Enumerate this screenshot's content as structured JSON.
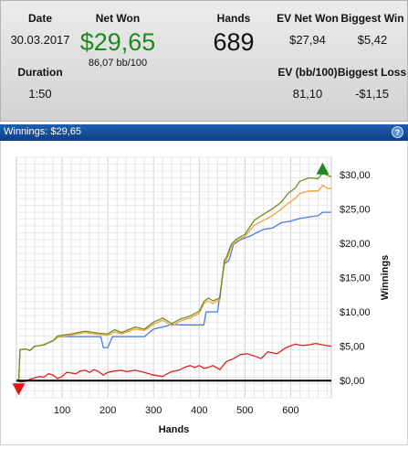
{
  "stats": {
    "date_label": "Date",
    "date_value": "30.03.2017",
    "duration_label": "Duration",
    "duration_value": "1:50",
    "net_won_label": "Net Won",
    "net_won_value": "$29,65",
    "net_won_sub": "86,07 bb/100",
    "hands_label": "Hands",
    "hands_value": "689",
    "ev_net_won_label": "EV Net Won",
    "ev_net_won_value": "$27,94",
    "ev_bb_label": "EV (bb/100)",
    "ev_bb_value": "81,10",
    "biggest_win_label": "Biggest Win",
    "biggest_win_value": "$5,42",
    "biggest_loss_label": "Biggest Loss",
    "biggest_loss_value": "-$1,15"
  },
  "titlebar": {
    "text": "Winnings: $29,65",
    "help": "?"
  },
  "colors": {
    "green": "#6e8f1e",
    "orange": "#f0a040",
    "blue": "#4a7ae8",
    "red": "#e02020",
    "net_won": "#1d8a1d"
  },
  "chart_data": {
    "type": "line",
    "xlabel": "Hands",
    "ylabel": "Winnings",
    "xlim": [
      0,
      689
    ],
    "ylim": [
      -2.5,
      32.5
    ],
    "xticks": [
      100,
      200,
      300,
      400,
      500,
      600
    ],
    "xtick_labels": [
      "100",
      "200",
      "300",
      "400",
      "500",
      "600"
    ],
    "yticks": [
      0,
      5,
      10,
      15,
      20,
      25,
      30
    ],
    "ytick_labels": [
      "$0,00",
      "$5,00",
      "$10,00",
      "$15,00",
      "$20,00",
      "$25,00",
      "$30,00"
    ],
    "grid": true,
    "series": [
      {
        "color": "green",
        "points": [
          [
            0,
            0
          ],
          [
            5,
            0
          ],
          [
            8,
            4.5
          ],
          [
            20,
            4.6
          ],
          [
            30,
            4.4
          ],
          [
            40,
            5
          ],
          [
            60,
            5.2
          ],
          [
            80,
            5.8
          ],
          [
            90,
            6.5
          ],
          [
            100,
            6.6
          ],
          [
            120,
            6.8
          ],
          [
            150,
            7.2
          ],
          [
            180,
            6.9
          ],
          [
            200,
            6.8
          ],
          [
            215,
            7.4
          ],
          [
            230,
            7
          ],
          [
            260,
            7.8
          ],
          [
            280,
            7.5
          ],
          [
            300,
            8.5
          ],
          [
            320,
            9.1
          ],
          [
            340,
            8.3
          ],
          [
            360,
            9
          ],
          [
            380,
            9.4
          ],
          [
            400,
            10.1
          ],
          [
            410,
            11.5
          ],
          [
            420,
            12
          ],
          [
            430,
            11.6
          ],
          [
            445,
            12
          ],
          [
            455,
            17.5
          ],
          [
            460,
            18
          ],
          [
            470,
            19.8
          ],
          [
            480,
            20.5
          ],
          [
            500,
            21.3
          ],
          [
            520,
            23.3
          ],
          [
            540,
            24.2
          ],
          [
            560,
            25
          ],
          [
            580,
            26
          ],
          [
            595,
            27.3
          ],
          [
            610,
            28
          ],
          [
            620,
            29
          ],
          [
            640,
            29.5
          ],
          [
            660,
            29.4
          ],
          [
            670,
            30.2
          ],
          [
            680,
            29.9
          ],
          [
            689,
            29.65
          ]
        ]
      },
      {
        "color": "orange",
        "points": [
          [
            0,
            0
          ],
          [
            5,
            0
          ],
          [
            8,
            4.5
          ],
          [
            20,
            4.6
          ],
          [
            30,
            4.4
          ],
          [
            40,
            5
          ],
          [
            60,
            5.2
          ],
          [
            80,
            5.8
          ],
          [
            90,
            6.3
          ],
          [
            100,
            6.4
          ],
          [
            120,
            6.6
          ],
          [
            150,
            7
          ],
          [
            180,
            6.7
          ],
          [
            200,
            6.6
          ],
          [
            215,
            7.1
          ],
          [
            230,
            6.8
          ],
          [
            260,
            7.5
          ],
          [
            280,
            7.3
          ],
          [
            300,
            8.2
          ],
          [
            320,
            8.8
          ],
          [
            340,
            8
          ],
          [
            360,
            8.7
          ],
          [
            380,
            9.1
          ],
          [
            400,
            9.8
          ],
          [
            410,
            11.2
          ],
          [
            420,
            11.6
          ],
          [
            430,
            11.2
          ],
          [
            445,
            11.8
          ],
          [
            455,
            17.2
          ],
          [
            460,
            17.6
          ],
          [
            470,
            19.5
          ],
          [
            480,
            20.2
          ],
          [
            500,
            21
          ],
          [
            520,
            22.6
          ],
          [
            540,
            23.3
          ],
          [
            560,
            24
          ],
          [
            580,
            25
          ],
          [
            595,
            25.8
          ],
          [
            610,
            26.5
          ],
          [
            620,
            27.2
          ],
          [
            640,
            27.6
          ],
          [
            660,
            27.6
          ],
          [
            670,
            28.4
          ],
          [
            680,
            28
          ],
          [
            689,
            27.94
          ]
        ]
      },
      {
        "color": "blue",
        "points": [
          [
            0,
            0
          ],
          [
            5,
            0
          ],
          [
            8,
            4.5
          ],
          [
            20,
            4.6
          ],
          [
            30,
            4.4
          ],
          [
            40,
            5
          ],
          [
            60,
            5.2
          ],
          [
            80,
            5.8
          ],
          [
            90,
            6.3
          ],
          [
            100,
            6.4
          ],
          [
            150,
            6.4
          ],
          [
            185,
            6.4
          ],
          [
            190,
            4.8
          ],
          [
            200,
            4.8
          ],
          [
            210,
            6.4
          ],
          [
            280,
            6.4
          ],
          [
            300,
            7.5
          ],
          [
            320,
            7.8
          ],
          [
            340,
            8.2
          ],
          [
            360,
            8.1
          ],
          [
            390,
            8.1
          ],
          [
            410,
            8.1
          ],
          [
            415,
            10
          ],
          [
            440,
            10
          ],
          [
            455,
            17
          ],
          [
            465,
            17.5
          ],
          [
            475,
            19.8
          ],
          [
            490,
            20.5
          ],
          [
            510,
            21
          ],
          [
            540,
            22
          ],
          [
            560,
            22.2
          ],
          [
            580,
            23
          ],
          [
            600,
            23.2
          ],
          [
            620,
            23.6
          ],
          [
            640,
            23.8
          ],
          [
            660,
            24
          ],
          [
            670,
            24.5
          ],
          [
            689,
            24.5
          ]
        ]
      },
      {
        "color": "red",
        "points": [
          [
            0,
            0
          ],
          [
            10,
            -0.2
          ],
          [
            20,
            -0.1
          ],
          [
            30,
            0.2
          ],
          [
            40,
            0.4
          ],
          [
            50,
            0.6
          ],
          [
            60,
            0.5
          ],
          [
            70,
            1
          ],
          [
            80,
            0.8
          ],
          [
            90,
            0.3
          ],
          [
            100,
            0.6
          ],
          [
            110,
            1.2
          ],
          [
            120,
            1.1
          ],
          [
            130,
            1
          ],
          [
            140,
            1.4
          ],
          [
            150,
            1.5
          ],
          [
            160,
            1.2
          ],
          [
            170,
            1.6
          ],
          [
            180,
            1.3
          ],
          [
            190,
            0.8
          ],
          [
            200,
            1.2
          ],
          [
            215,
            1.4
          ],
          [
            230,
            1.5
          ],
          [
            240,
            1.3
          ],
          [
            260,
            1.5
          ],
          [
            280,
            1.2
          ],
          [
            300,
            0.8
          ],
          [
            320,
            0.6
          ],
          [
            330,
            1
          ],
          [
            340,
            1.3
          ],
          [
            355,
            1.5
          ],
          [
            370,
            2
          ],
          [
            380,
            2.2
          ],
          [
            390,
            1.9
          ],
          [
            400,
            2.2
          ],
          [
            410,
            1.8
          ],
          [
            420,
            1.9
          ],
          [
            430,
            2.2
          ],
          [
            445,
            1.6
          ],
          [
            460,
            2.8
          ],
          [
            475,
            3.2
          ],
          [
            490,
            3.8
          ],
          [
            505,
            3.9
          ],
          [
            520,
            3.6
          ],
          [
            535,
            3.2
          ],
          [
            550,
            4.2
          ],
          [
            570,
            3.9
          ],
          [
            590,
            4.8
          ],
          [
            610,
            5.3
          ],
          [
            625,
            5.1
          ],
          [
            640,
            5.2
          ],
          [
            655,
            5.4
          ],
          [
            670,
            5.2
          ],
          [
            689,
            5
          ]
        ]
      }
    ],
    "markers": {
      "max": {
        "x": 670,
        "y": 30.8,
        "color": "#1f8a1f"
      },
      "min": {
        "x": 5,
        "y": -1.2,
        "color": "#e01818"
      }
    }
  }
}
